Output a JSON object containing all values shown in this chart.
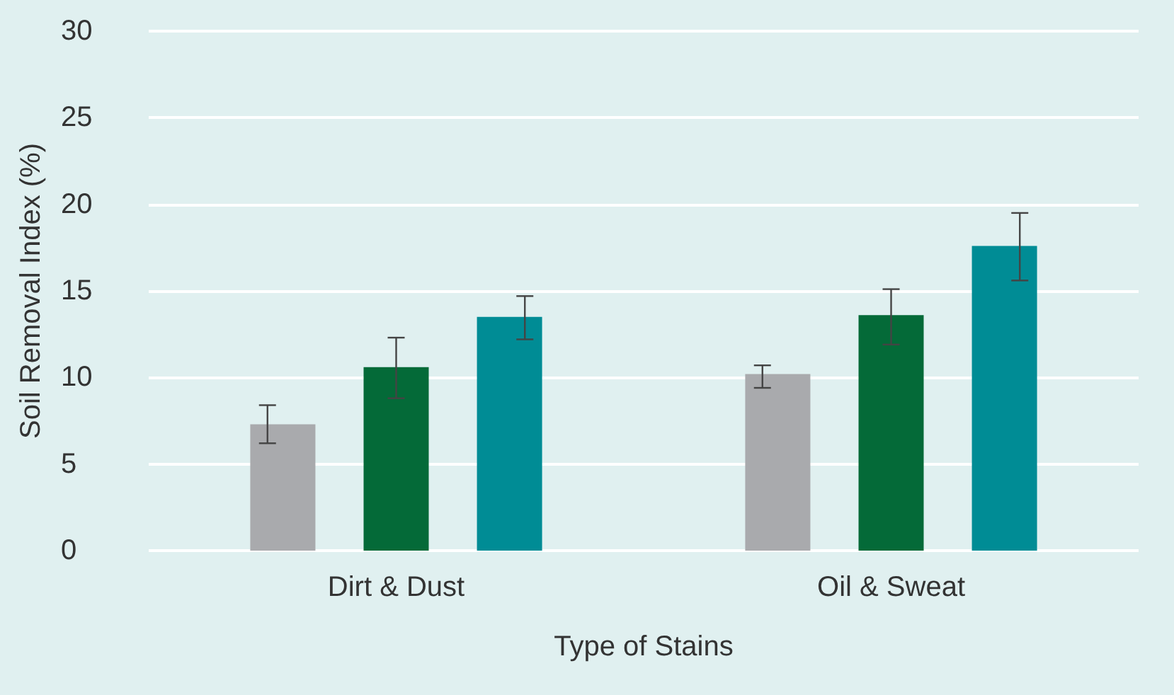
{
  "chart_data": {
    "type": "bar",
    "xlabel": "Type of Stains",
    "ylabel": "Soil Removal Index (%)",
    "categories": [
      "Dirt & Dust",
      "Oil & Sweat"
    ],
    "series": [
      {
        "color": "#a9aaad",
        "values": [
          7.3,
          10.2
        ],
        "errors": [
          [
            6.2,
            8.4
          ],
          [
            9.4,
            10.7
          ]
        ]
      },
      {
        "color": "#046a38",
        "values": [
          10.6,
          13.6
        ],
        "errors": [
          [
            8.8,
            12.3
          ],
          [
            11.9,
            15.1
          ]
        ]
      },
      {
        "color": "#008c95",
        "values": [
          13.5,
          17.6
        ],
        "errors": [
          [
            12.2,
            14.7
          ],
          [
            15.6,
            19.5
          ]
        ]
      }
    ],
    "ylim": [
      0,
      30
    ],
    "yticks": [
      0,
      5,
      10,
      15,
      20,
      25,
      30
    ],
    "grid": "y"
  }
}
